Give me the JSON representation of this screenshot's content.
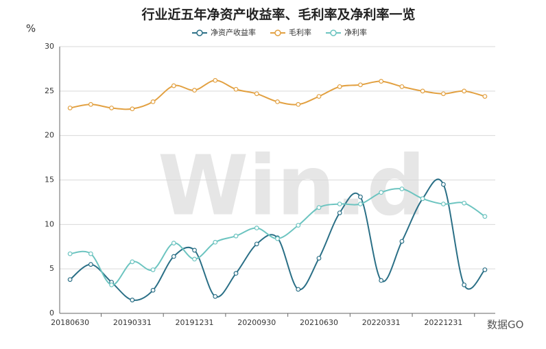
{
  "chart_data": {
    "type": "line",
    "title": "行业近五年净资产收益率、毛利率及净利率一览",
    "ylabel": "%",
    "watermark": "Win.d",
    "brand": "数据GO",
    "categories": [
      "20180630",
      null,
      null,
      "20190331",
      null,
      null,
      "20191231",
      null,
      null,
      "20200930",
      null,
      null,
      "20210630",
      null,
      null,
      "20220331",
      null,
      null,
      "20221231",
      null,
      null
    ],
    "ylim": [
      0,
      30
    ],
    "yticks": [
      0,
      5,
      10,
      15,
      20,
      25,
      30
    ],
    "grid": true,
    "legend": "top",
    "series": [
      {
        "name": "净资产收益率",
        "color": "#2a6f86",
        "values": [
          3.8,
          5.5,
          3.5,
          1.5,
          2.6,
          6.4,
          7.1,
          1.9,
          4.5,
          7.8,
          8.5,
          2.7,
          6.2,
          11.3,
          13.1,
          3.7,
          8.1,
          12.9,
          14.5,
          3.2,
          4.9
        ]
      },
      {
        "name": "毛利率",
        "color": "#e2a040",
        "values": [
          23.1,
          23.5,
          23.1,
          23.0,
          23.8,
          25.6,
          25.1,
          26.2,
          25.2,
          24.7,
          23.8,
          23.5,
          24.4,
          25.5,
          25.7,
          26.1,
          25.5,
          25.0,
          24.7,
          25.0,
          24.4
        ]
      },
      {
        "name": "净利率",
        "color": "#6cc4c0",
        "values": [
          6.7,
          6.7,
          3.2,
          5.8,
          4.9,
          7.9,
          6.1,
          8.0,
          8.7,
          9.6,
          8.4,
          9.9,
          11.9,
          12.3,
          12.3,
          13.6,
          14.0,
          12.9,
          12.3,
          12.4,
          10.9
        ]
      }
    ]
  }
}
